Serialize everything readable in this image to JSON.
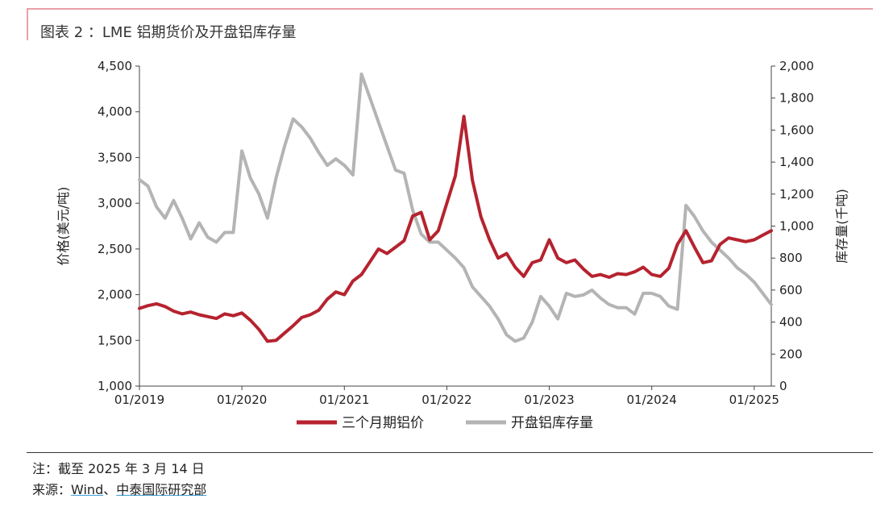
{
  "figure_title": "图表 2 ：LME 铝期货价及开盘铝库存量",
  "note": "注：截至 2025 年 3 月 14 日",
  "source": {
    "prefix": "来源：",
    "wind": "Wind",
    "sep": "、",
    "org": "中泰国际研究部"
  },
  "colors": {
    "price": "#b5232f",
    "stock": "#b4b4b4",
    "axis": "#444444",
    "accent": "#e8a0a6"
  },
  "chart_data": {
    "type": "line",
    "title": "",
    "x_axis": {
      "ticks": [
        "01/2019",
        "01/2020",
        "01/2021",
        "01/2022",
        "01/2023",
        "01/2024",
        "01/2025"
      ],
      "range": [
        "01/2019",
        "03/2025"
      ]
    },
    "y_left": {
      "label": "价格(美元/吨)",
      "range": [
        1000,
        4500
      ],
      "ticks": [
        "1,000",
        "1,500",
        "2,000",
        "2,500",
        "3,000",
        "3,500",
        "4,000",
        "4,500"
      ]
    },
    "y_right": {
      "label": "库存量(千吨)",
      "range": [
        0,
        2000
      ],
      "ticks": [
        "0",
        "200",
        "400",
        "600",
        "800",
        "1,000",
        "1,200",
        "1,400",
        "1,600",
        "1,800",
        "2,000"
      ]
    },
    "legend_position": "bottom",
    "series": [
      {
        "name": "三个月期铝价",
        "axis": "left",
        "points": [
          [
            "2019-01",
            1850
          ],
          [
            "2019-02",
            1880
          ],
          [
            "2019-03",
            1900
          ],
          [
            "2019-04",
            1870
          ],
          [
            "2019-05",
            1820
          ],
          [
            "2019-06",
            1790
          ],
          [
            "2019-07",
            1810
          ],
          [
            "2019-08",
            1780
          ],
          [
            "2019-09",
            1760
          ],
          [
            "2019-10",
            1740
          ],
          [
            "2019-11",
            1790
          ],
          [
            "2019-12",
            1770
          ],
          [
            "2020-01",
            1800
          ],
          [
            "2020-02",
            1720
          ],
          [
            "2020-03",
            1620
          ],
          [
            "2020-04",
            1490
          ],
          [
            "2020-05",
            1500
          ],
          [
            "2020-06",
            1580
          ],
          [
            "2020-07",
            1660
          ],
          [
            "2020-08",
            1750
          ],
          [
            "2020-09",
            1780
          ],
          [
            "2020-10",
            1830
          ],
          [
            "2020-11",
            1950
          ],
          [
            "2020-12",
            2030
          ],
          [
            "2021-01",
            2000
          ],
          [
            "2021-02",
            2150
          ],
          [
            "2021-03",
            2220
          ],
          [
            "2021-04",
            2360
          ],
          [
            "2021-05",
            2500
          ],
          [
            "2021-06",
            2450
          ],
          [
            "2021-07",
            2520
          ],
          [
            "2021-08",
            2590
          ],
          [
            "2021-09",
            2860
          ],
          [
            "2021-10",
            2900
          ],
          [
            "2021-11",
            2600
          ],
          [
            "2021-12",
            2700
          ],
          [
            "2022-01",
            3000
          ],
          [
            "2022-02",
            3300
          ],
          [
            "2022-03",
            3950
          ],
          [
            "2022-04",
            3250
          ],
          [
            "2022-05",
            2850
          ],
          [
            "2022-06",
            2600
          ],
          [
            "2022-07",
            2400
          ],
          [
            "2022-08",
            2450
          ],
          [
            "2022-09",
            2300
          ],
          [
            "2022-10",
            2200
          ],
          [
            "2022-11",
            2350
          ],
          [
            "2022-12",
            2380
          ],
          [
            "2023-01",
            2600
          ],
          [
            "2023-02",
            2400
          ],
          [
            "2023-03",
            2350
          ],
          [
            "2023-04",
            2380
          ],
          [
            "2023-05",
            2280
          ],
          [
            "2023-06",
            2200
          ],
          [
            "2023-07",
            2220
          ],
          [
            "2023-08",
            2190
          ],
          [
            "2023-09",
            2230
          ],
          [
            "2023-10",
            2220
          ],
          [
            "2023-11",
            2250
          ],
          [
            "2023-12",
            2300
          ],
          [
            "2024-01",
            2220
          ],
          [
            "2024-02",
            2200
          ],
          [
            "2024-03",
            2290
          ],
          [
            "2024-04",
            2550
          ],
          [
            "2024-05",
            2700
          ],
          [
            "2024-06",
            2520
          ],
          [
            "2024-07",
            2350
          ],
          [
            "2024-08",
            2370
          ],
          [
            "2024-09",
            2550
          ],
          [
            "2024-10",
            2620
          ],
          [
            "2024-11",
            2600
          ],
          [
            "2024-12",
            2580
          ],
          [
            "2025-01",
            2600
          ],
          [
            "2025-02",
            2650
          ],
          [
            "2025-03",
            2700
          ]
        ]
      },
      {
        "name": "开盘铝库存量",
        "axis": "right",
        "points": [
          [
            "2019-01",
            1290
          ],
          [
            "2019-02",
            1250
          ],
          [
            "2019-03",
            1120
          ],
          [
            "2019-04",
            1050
          ],
          [
            "2019-05",
            1160
          ],
          [
            "2019-06",
            1050
          ],
          [
            "2019-07",
            920
          ],
          [
            "2019-08",
            1020
          ],
          [
            "2019-09",
            930
          ],
          [
            "2019-10",
            900
          ],
          [
            "2019-11",
            960
          ],
          [
            "2019-12",
            960
          ],
          [
            "2020-01",
            1470
          ],
          [
            "2020-02",
            1300
          ],
          [
            "2020-03",
            1200
          ],
          [
            "2020-04",
            1050
          ],
          [
            "2020-05",
            1300
          ],
          [
            "2020-06",
            1500
          ],
          [
            "2020-07",
            1670
          ],
          [
            "2020-08",
            1620
          ],
          [
            "2020-09",
            1550
          ],
          [
            "2020-10",
            1460
          ],
          [
            "2020-11",
            1380
          ],
          [
            "2020-12",
            1420
          ],
          [
            "2021-01",
            1380
          ],
          [
            "2021-02",
            1320
          ],
          [
            "2021-03",
            1950
          ],
          [
            "2021-04",
            1800
          ],
          [
            "2021-05",
            1650
          ],
          [
            "2021-06",
            1500
          ],
          [
            "2021-07",
            1350
          ],
          [
            "2021-08",
            1330
          ],
          [
            "2021-09",
            1100
          ],
          [
            "2021-10",
            950
          ],
          [
            "2021-11",
            900
          ],
          [
            "2021-12",
            900
          ],
          [
            "2022-01",
            850
          ],
          [
            "2022-02",
            800
          ],
          [
            "2022-03",
            740
          ],
          [
            "2022-04",
            620
          ],
          [
            "2022-05",
            560
          ],
          [
            "2022-06",
            500
          ],
          [
            "2022-07",
            420
          ],
          [
            "2022-08",
            320
          ],
          [
            "2022-09",
            280
          ],
          [
            "2022-10",
            300
          ],
          [
            "2022-11",
            400
          ],
          [
            "2022-12",
            560
          ],
          [
            "2023-01",
            500
          ],
          [
            "2023-02",
            420
          ],
          [
            "2023-03",
            580
          ],
          [
            "2023-04",
            560
          ],
          [
            "2023-05",
            570
          ],
          [
            "2023-06",
            600
          ],
          [
            "2023-07",
            550
          ],
          [
            "2023-08",
            510
          ],
          [
            "2023-09",
            490
          ],
          [
            "2023-10",
            490
          ],
          [
            "2023-11",
            450
          ],
          [
            "2023-12",
            580
          ],
          [
            "2024-01",
            580
          ],
          [
            "2024-02",
            560
          ],
          [
            "2024-03",
            500
          ],
          [
            "2024-04",
            480
          ],
          [
            "2024-05",
            1130
          ],
          [
            "2024-06",
            1060
          ],
          [
            "2024-07",
            970
          ],
          [
            "2024-08",
            900
          ],
          [
            "2024-09",
            850
          ],
          [
            "2024-10",
            800
          ],
          [
            "2024-11",
            740
          ],
          [
            "2024-12",
            700
          ],
          [
            "2025-01",
            650
          ],
          [
            "2025-02",
            580
          ],
          [
            "2025-03",
            510
          ]
        ]
      }
    ]
  }
}
